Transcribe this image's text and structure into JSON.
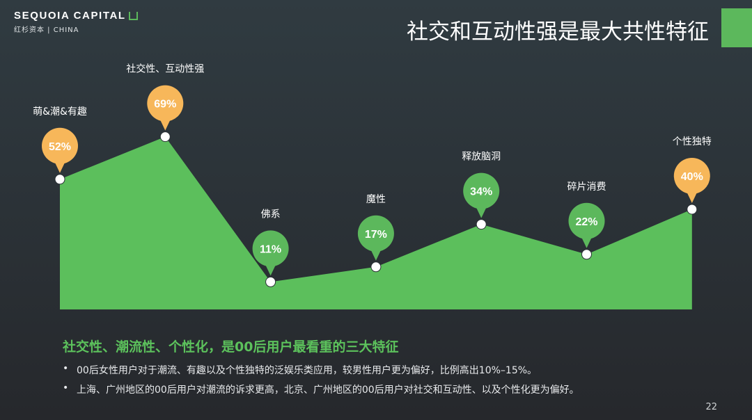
{
  "logo": {
    "name": "SEQUOIA CAPITAL",
    "sub_cn": "红杉资本",
    "sub_en": "CHINA"
  },
  "title": "社交和互动性强是最大共性特征",
  "colors": {
    "area": "#5cbf5c",
    "highlight": "#f7b75a",
    "bubble": "#5cb85c",
    "corner": "#5cb85c"
  },
  "chart_data": {
    "type": "area",
    "categories": [
      "萌&潮&有趣",
      "社交性、互动性强",
      "佛系",
      "魔性",
      "释放脑洞",
      "碎片消费",
      "个性独特"
    ],
    "values": [
      52,
      69,
      11,
      17,
      34,
      22,
      40
    ],
    "data_labels": [
      "52%",
      "69%",
      "11%",
      "17%",
      "34%",
      "22%",
      "40%"
    ],
    "highlighted": [
      true,
      true,
      false,
      false,
      false,
      false,
      true
    ],
    "ylim": [
      0,
      100
    ],
    "grid": false
  },
  "headline": "社交性、潮流性、个性化，是00后用户最看重的三大特征",
  "bullets": [
    "00后女性用户对于潮流、有趣以及个性独特的泛娱乐类应用，较男性用户更为偏好，比例高出10%–15%。",
    "上海、广州地区的00后用户对潮流的诉求更高，北京、广州地区的00后用户对社交和互动性、以及个性化更为偏好。"
  ],
  "page_number": "22"
}
